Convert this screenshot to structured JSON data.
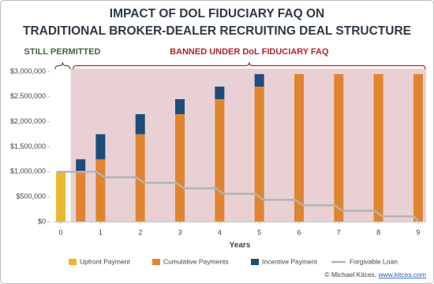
{
  "chart_data": {
    "type": "bar",
    "title": [
      "IMPACT OF DOL FIDUCIARY FAQ ON",
      "TRADITIONAL BROKER-DEALER RECRUITING DEAL STRUCTURE"
    ],
    "annotations": [
      {
        "text": "STILL PERMITTED",
        "color": "#3f6b34",
        "xrange": [
          -0.2,
          0.25
        ]
      },
      {
        "text": "BANNED UNDER DoL FIDUCIARY FAQ",
        "color": "#b1242b",
        "xrange": [
          0.25,
          9.2
        ],
        "shade": "#e9d0d4"
      }
    ],
    "x_label": "Years",
    "xlim": [
      -0.2,
      9.2
    ],
    "xticks": [
      0,
      1,
      2,
      3,
      4,
      5,
      6,
      7,
      8,
      9
    ],
    "ylim": [
      0,
      3000000
    ],
    "yticks": [
      {
        "value": 0,
        "label": "$0"
      },
      {
        "value": 500000,
        "label": "$500,000"
      },
      {
        "value": 1000000,
        "label": "$1,000,000"
      },
      {
        "value": 1500000,
        "label": "$1,500,000"
      },
      {
        "value": 2000000,
        "label": "$2,000,000"
      },
      {
        "value": 2500000,
        "label": "$2,500,000"
      },
      {
        "value": 3000000,
        "label": "$3,000,000"
      }
    ],
    "series": [
      {
        "name": "Upfront Payment",
        "type": "bar",
        "color": "#e9b730",
        "x": [
          0
        ],
        "values": [
          1000000
        ]
      },
      {
        "name": "Cumulative Payments",
        "type": "bar",
        "color": "#df8530",
        "x": [
          0.5,
          1,
          2,
          3,
          4,
          5,
          6,
          7,
          8,
          9
        ],
        "values": [
          1000000,
          1250000,
          1750000,
          2150000,
          2450000,
          2700000,
          2950000,
          2950000,
          2950000,
          2950000
        ]
      },
      {
        "name": "Incentive Payment",
        "type": "bar",
        "stack_on": "Cumulative Payments",
        "color": "#1f4d7a",
        "x": [
          0.5,
          1,
          2,
          3,
          4,
          5
        ],
        "values": [
          250000,
          500000,
          400000,
          300000,
          250000,
          250000
        ]
      },
      {
        "name": "Forgivable Loan",
        "type": "line",
        "color": "#b3b3b3",
        "x": [
          -0.1,
          0.9,
          1.1,
          1.9,
          2.1,
          2.9,
          3.1,
          3.9,
          4.1,
          4.9,
          5.1,
          5.9,
          6.1,
          6.9,
          7.1,
          7.9,
          8.1,
          8.9,
          9
        ],
        "values": [
          1000000,
          1000000,
          890000,
          890000,
          780000,
          780000,
          670000,
          670000,
          560000,
          560000,
          440000,
          440000,
          330000,
          330000,
          220000,
          220000,
          110000,
          110000,
          0
        ]
      }
    ],
    "credit": [
      "© Michael Kitces, ",
      "www.kitces.com"
    ]
  }
}
